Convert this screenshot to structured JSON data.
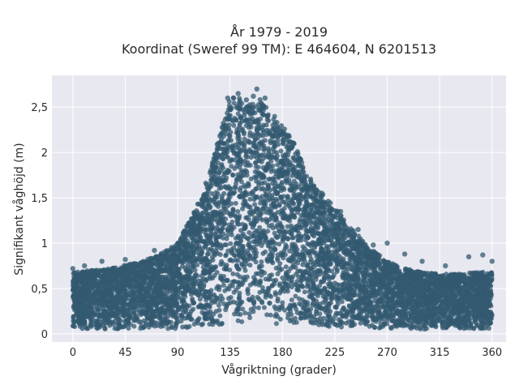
{
  "chart_data": {
    "type": "scatter",
    "title_line1": "År 1979 - 2019",
    "title_line2": "Koordinat (Sweref 99 TM): E 464604, N 6201513",
    "xlabel": "Vågriktning (grader)",
    "ylabel": "Signifikant våghöjd (m)",
    "xlim": [
      -18,
      372
    ],
    "ylim": [
      -0.09,
      2.85
    ],
    "x_ticks": [
      0,
      45,
      90,
      135,
      180,
      225,
      270,
      315,
      360
    ],
    "x_tick_labels": [
      "0",
      "45",
      "90",
      "135",
      "180",
      "225",
      "270",
      "315",
      "360"
    ],
    "y_ticks": [
      0,
      0.5,
      1,
      1.5,
      2,
      2.5
    ],
    "y_tick_labels": [
      "0",
      "0,5",
      "1",
      "1,5",
      "2",
      "2,5"
    ],
    "grid": true,
    "marker_color": "#335a70",
    "background_color": "#e8e8f0",
    "envelope": {
      "direction": [
        0,
        15,
        30,
        45,
        60,
        75,
        90,
        100,
        110,
        120,
        130,
        135,
        140,
        150,
        160,
        170,
        180,
        190,
        200,
        210,
        225,
        240,
        255,
        270,
        285,
        300,
        315,
        330,
        345,
        360
      ],
      "upper_hs": [
        0.68,
        0.7,
        0.72,
        0.76,
        0.8,
        0.88,
        1.0,
        1.25,
        1.5,
        1.9,
        2.4,
        2.6,
        2.62,
        2.55,
        2.6,
        2.45,
        2.3,
        2.1,
        1.8,
        1.6,
        1.4,
        1.15,
        0.95,
        0.8,
        0.72,
        0.68,
        0.66,
        0.66,
        0.68,
        0.68
      ],
      "lower_hs": [
        0.05,
        0.05,
        0.05,
        0.05,
        0.05,
        0.05,
        0.05,
        0.06,
        0.07,
        0.08,
        0.1,
        0.1,
        0.1,
        0.1,
        0.1,
        0.1,
        0.09,
        0.09,
        0.08,
        0.08,
        0.07,
        0.07,
        0.06,
        0.06,
        0.05,
        0.05,
        0.05,
        0.05,
        0.05,
        0.05
      ]
    },
    "outliers": [
      {
        "x": 0,
        "y": 0.72
      },
      {
        "x": 10,
        "y": 0.75
      },
      {
        "x": 25,
        "y": 0.8
      },
      {
        "x": 45,
        "y": 0.82
      },
      {
        "x": 70,
        "y": 0.92
      },
      {
        "x": 95,
        "y": 1.1
      },
      {
        "x": 105,
        "y": 1.3
      },
      {
        "x": 112,
        "y": 1.5
      },
      {
        "x": 125,
        "y": 2.1
      },
      {
        "x": 133,
        "y": 2.6
      },
      {
        "x": 138,
        "y": 2.6
      },
      {
        "x": 142,
        "y": 2.65
      },
      {
        "x": 149,
        "y": 2.58
      },
      {
        "x": 155,
        "y": 2.62
      },
      {
        "x": 158,
        "y": 2.7
      },
      {
        "x": 165,
        "y": 2.6
      },
      {
        "x": 172,
        "y": 2.3
      },
      {
        "x": 178,
        "y": 2.25
      },
      {
        "x": 186,
        "y": 2.05
      },
      {
        "x": 195,
        "y": 1.85
      },
      {
        "x": 205,
        "y": 1.6
      },
      {
        "x": 214,
        "y": 1.55
      },
      {
        "x": 230,
        "y": 1.35
      },
      {
        "x": 245,
        "y": 1.15
      },
      {
        "x": 258,
        "y": 0.98
      },
      {
        "x": 270,
        "y": 1.0
      },
      {
        "x": 285,
        "y": 0.88
      },
      {
        "x": 300,
        "y": 0.8
      },
      {
        "x": 320,
        "y": 0.75
      },
      {
        "x": 340,
        "y": 0.85
      },
      {
        "x": 352,
        "y": 0.87
      },
      {
        "x": 360,
        "y": 0.8
      }
    ]
  }
}
